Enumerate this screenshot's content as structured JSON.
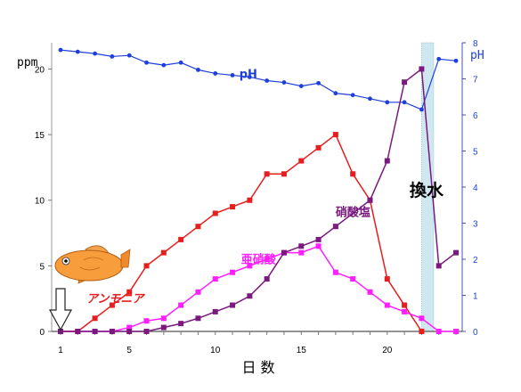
{
  "chart_data": {
    "type": "line",
    "x_axis": {
      "title": "日 数",
      "range": [
        1,
        24
      ],
      "ticks": [
        1,
        5,
        10,
        15,
        20
      ]
    },
    "y_left": {
      "title": "ppm",
      "range": [
        0,
        22
      ],
      "ticks": [
        0,
        5,
        10,
        15,
        20
      ]
    },
    "y_right": {
      "title": "pH",
      "range": [
        0,
        8
      ],
      "ticks": [
        0,
        1,
        2,
        3,
        4,
        5,
        6,
        7,
        8
      ]
    },
    "grid": false,
    "water_change": {
      "label": "換水",
      "x_range": [
        22,
        22.7
      ]
    },
    "series": [
      {
        "name": "pH",
        "axis": "right",
        "color": "#1f3fdc",
        "marker": "circle",
        "label_x": 11.4,
        "label_y": 7.02,
        "x": [
          1,
          2,
          3,
          4,
          5,
          6,
          7,
          8,
          9,
          10,
          11,
          12,
          13,
          14,
          15,
          16,
          17,
          18,
          19,
          20,
          21,
          22,
          23,
          24
        ],
        "values": [
          7.8,
          7.75,
          7.7,
          7.62,
          7.65,
          7.45,
          7.38,
          7.45,
          7.25,
          7.15,
          7.1,
          7.05,
          6.95,
          6.9,
          6.8,
          6.88,
          6.6,
          6.55,
          6.45,
          6.35,
          6.35,
          6.15,
          7.55,
          7.5
        ]
      },
      {
        "name": "アンモニア",
        "axis": "left",
        "color": "#e61e1e",
        "marker": "square",
        "label_x": 2.5,
        "label_y": 2.2,
        "x": [
          1,
          2,
          3,
          4,
          5,
          6,
          7,
          8,
          9,
          10,
          11,
          12,
          13,
          14,
          15,
          16,
          17,
          18,
          19,
          20,
          21,
          22
        ],
        "values": [
          0,
          0,
          1,
          2,
          3,
          5,
          6,
          7,
          8,
          9,
          9.5,
          10,
          12,
          12,
          13,
          14,
          15,
          12,
          10,
          4,
          2,
          0
        ]
      },
      {
        "name": "亜硝酸",
        "axis": "left",
        "color": "#ff1eff",
        "marker": "square",
        "label_x": 11.5,
        "label_y": 5.2,
        "x": [
          1,
          2,
          3,
          4,
          5,
          6,
          7,
          8,
          9,
          10,
          11,
          12,
          13,
          14,
          15,
          16,
          17,
          18,
          19,
          20,
          21,
          22,
          23,
          24
        ],
        "values": [
          0,
          0,
          0,
          0,
          0.3,
          0.8,
          1,
          2,
          3,
          4,
          4.5,
          5,
          5.5,
          6,
          6,
          6.5,
          4.5,
          4,
          3,
          2,
          1.5,
          1,
          0,
          0
        ]
      },
      {
        "name": "硝酸塩",
        "axis": "left",
        "color": "#7a1a7e",
        "marker": "square",
        "label_x": 17,
        "label_y": 8.8,
        "x": [
          1,
          2,
          3,
          4,
          5,
          6,
          7,
          8,
          9,
          10,
          11,
          12,
          13,
          14,
          15,
          16,
          17,
          19,
          20,
          21,
          22,
          23,
          24
        ],
        "values": [
          0,
          0,
          0,
          0,
          0,
          0,
          0.3,
          0.6,
          1,
          1.5,
          2,
          2.7,
          4,
          6,
          6.5,
          7,
          8,
          10,
          13,
          19,
          20,
          5,
          6
        ]
      }
    ]
  }
}
